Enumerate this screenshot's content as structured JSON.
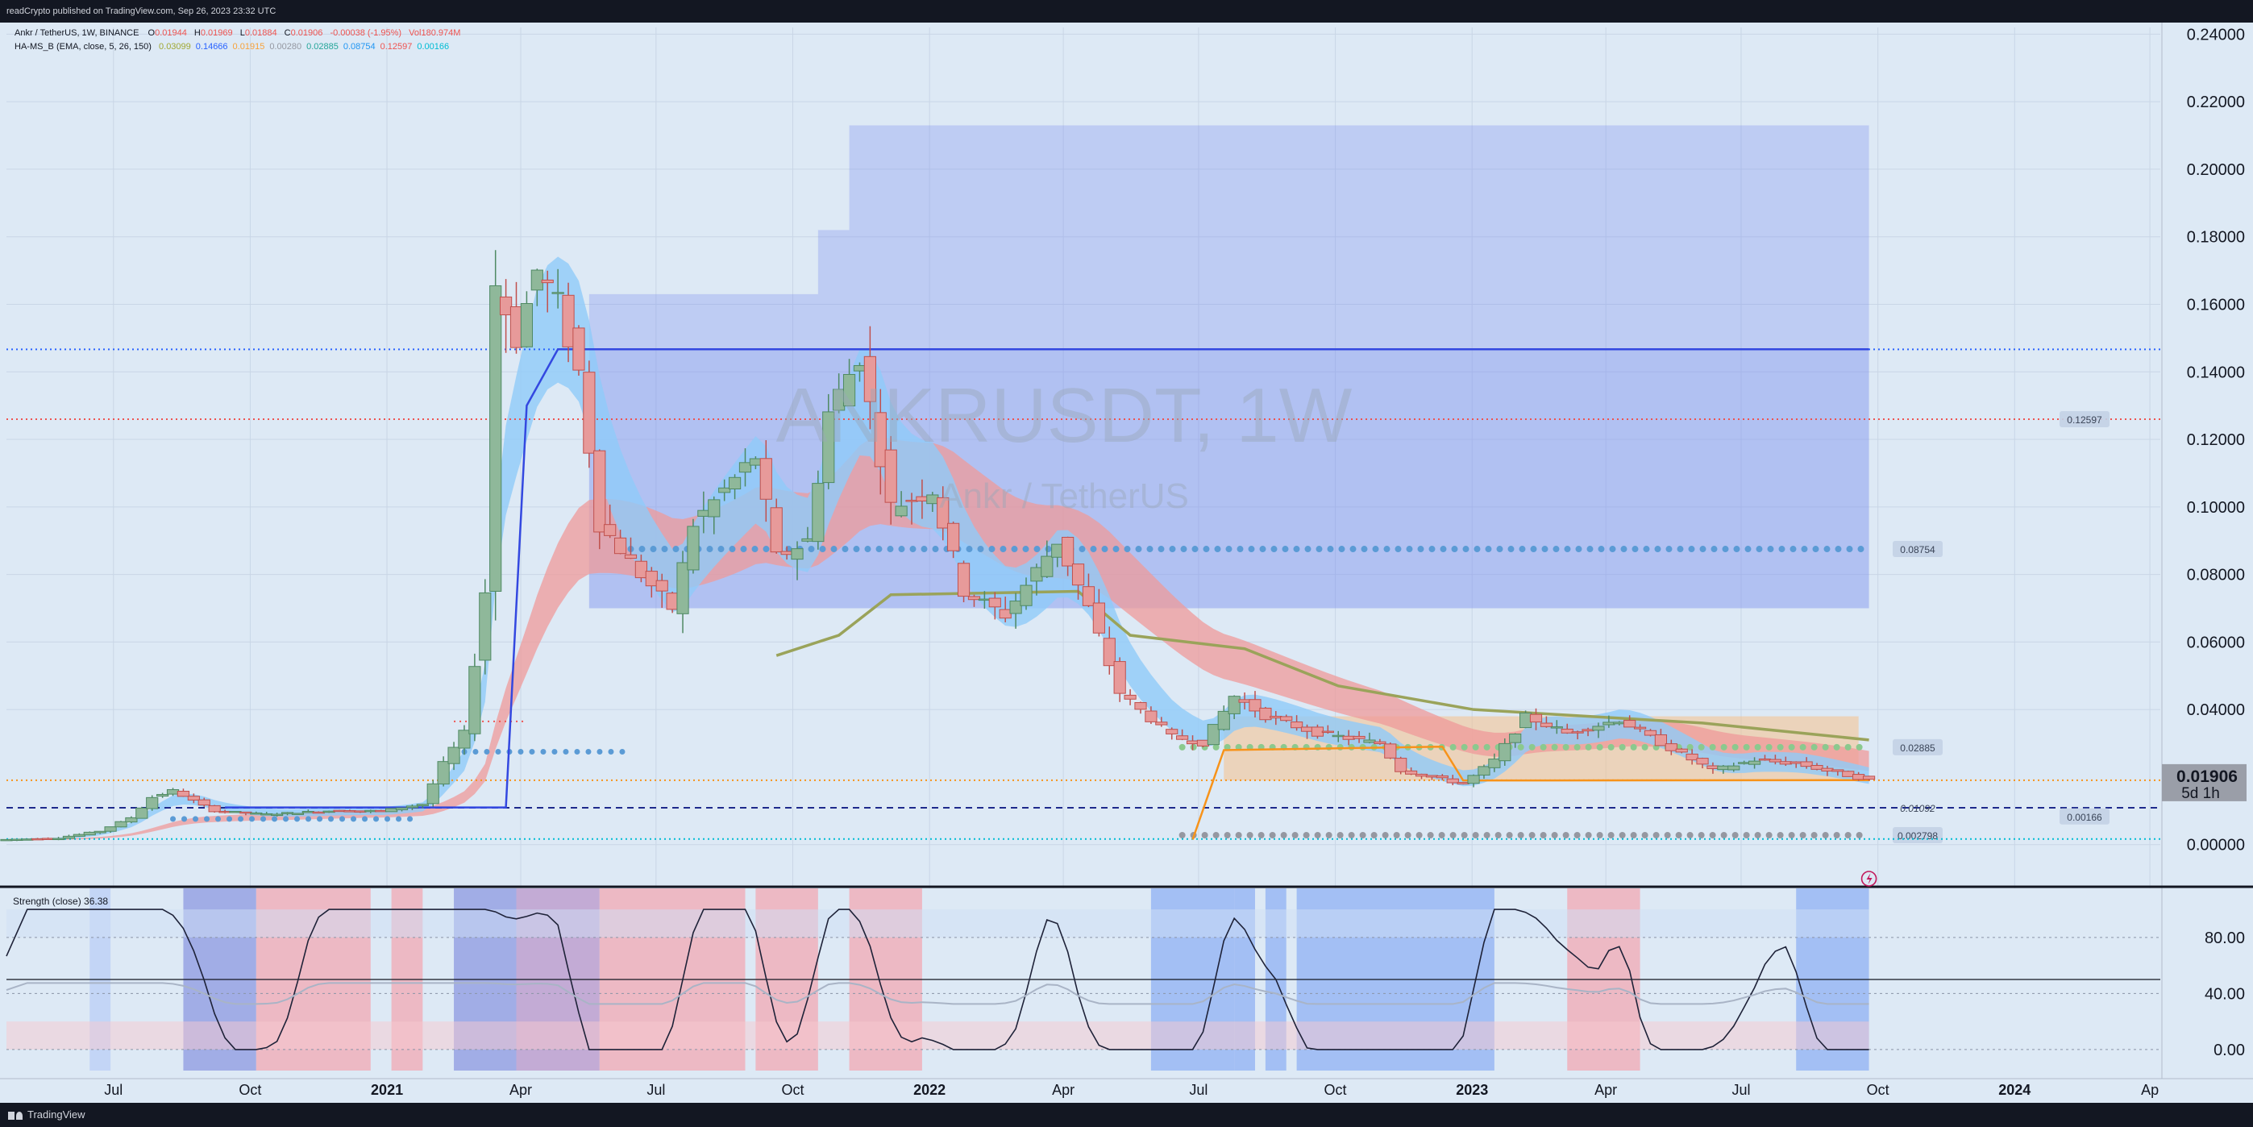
{
  "header": {
    "published": "readCrypto published on TradingView.com, Sep 26, 2023 23:32 UTC"
  },
  "footer": {
    "brand": "TradingView"
  },
  "legend": {
    "symbol_line": "Ankr / TetherUS, 1W, BINANCE",
    "ohlc": [
      {
        "label": "O",
        "value": "0.01944"
      },
      {
        "label": "H",
        "value": "0.01969"
      },
      {
        "label": "L",
        "value": "0.01884"
      },
      {
        "label": "C",
        "value": "0.01906"
      }
    ],
    "change": "-0.00038 (-1.95%)",
    "volume": "Vol180.974M",
    "indicator_name": "HA-MS_B (EMA, close, 5, 26, 150)",
    "indicator_values": [
      {
        "value": "0.03099",
        "color": "#a0a832"
      },
      {
        "value": "0.14666",
        "color": "#2962ff"
      },
      {
        "value": "0.01915",
        "color": "#f7a23a"
      },
      {
        "value": "0.00280",
        "color": "#9598a1"
      },
      {
        "value": "0.02885",
        "color": "#26a69a"
      },
      {
        "value": "0.08754",
        "color": "#2196f3"
      },
      {
        "value": "0.12597",
        "color": "#ef5350"
      },
      {
        "value": "0.00166",
        "color": "#00bcd4"
      }
    ]
  },
  "watermark": {
    "symbol": "ANKRUSDT, 1W",
    "name": "Ankr / TetherUS"
  },
  "oscillator": {
    "label": "Strength (close)",
    "value": "36.38"
  },
  "colors": {
    "background": "#dde9f5",
    "up": "#26a69a",
    "down": "#ef5350",
    "blue_box": "#7b8ff0",
    "ema_fast": "#90caf9",
    "ema_slow": "#ef9a9a",
    "olive_line": "#9aa35a",
    "orange_line": "#f7931a",
    "dark_blue_line": "#3348e0"
  },
  "chart_data": {
    "type": "candlestick",
    "symbol": "ANKRUSDT",
    "timeframe": "1W",
    "exchange": "BINANCE",
    "y_range": [
      -0.012,
      0.242
    ],
    "y_ticks": [
      "0.24000",
      "0.22000",
      "0.20000",
      "0.18000",
      "0.16000",
      "0.14000",
      "0.12000",
      "0.10000",
      "0.08000",
      "0.06000",
      "0.04000",
      "0.00000"
    ],
    "x_range": [
      "2020-04-20",
      "2024-04-08"
    ],
    "x_ticks": [
      {
        "date": "2020-07-01",
        "label": "Jul"
      },
      {
        "date": "2020-10-01",
        "label": "Oct"
      },
      {
        "date": "2021-01-01",
        "label": "2021"
      },
      {
        "date": "2021-04-01",
        "label": "Apr"
      },
      {
        "date": "2021-07-01",
        "label": "Jul"
      },
      {
        "date": "2021-10-01",
        "label": "Oct"
      },
      {
        "date": "2022-01-01",
        "label": "2022"
      },
      {
        "date": "2022-04-01",
        "label": "Apr"
      },
      {
        "date": "2022-07-01",
        "label": "Jul"
      },
      {
        "date": "2022-10-01",
        "label": "Oct"
      },
      {
        "date": "2023-01-01",
        "label": "2023"
      },
      {
        "date": "2023-04-01",
        "label": "Apr"
      },
      {
        "date": "2023-07-01",
        "label": "Jul"
      },
      {
        "date": "2023-10-01",
        "label": "Oct"
      },
      {
        "date": "2024-01-01",
        "label": "2024"
      },
      {
        "date": "2024-04-01",
        "label": "Ap"
      }
    ],
    "price_levels": [
      {
        "label": "0.14666",
        "value": 0.14666,
        "style": "dotted",
        "color": "#2962ff",
        "tag": ""
      },
      {
        "label": "0.12597",
        "value": 0.12597,
        "style": "dotted",
        "color": "#ef5350",
        "tag": "0.12597"
      },
      {
        "label": "0.08754",
        "value": 0.08754,
        "style": "dots",
        "color": "#5b9bd5",
        "tag": "0.08754"
      },
      {
        "label": "0.02885",
        "value": 0.02885,
        "style": "dots",
        "color": "#8bc98e",
        "tag": "0.02885"
      },
      {
        "label": "0.01906",
        "value": 0.01906,
        "style": "dotted",
        "color": "#f7931a",
        "tag": ""
      },
      {
        "label": "0.01092",
        "value": 0.01092,
        "style": "dashed",
        "color": "#1e2a8c",
        "tag": "0.01092"
      },
      {
        "label": "0.002798",
        "value": 0.002798,
        "style": "dots",
        "color": "#9598a1",
        "tag": "0.002798"
      },
      {
        "label": "0.00166",
        "value": 0.00166,
        "style": "dotted",
        "color": "#00bcd4",
        "tag": "0.00166"
      }
    ],
    "last_price": {
      "value": "0.01906",
      "countdown": "5d 1h"
    },
    "box": {
      "start": "2021-05-17",
      "end": "2023-09-25",
      "low": 0.07,
      "high": 0.147
    },
    "box_steps": [
      {
        "date": "2021-05-17",
        "value": 0.163
      },
      {
        "date": "2021-10-04",
        "value": 0.163
      },
      {
        "date": "2021-10-18",
        "value": 0.182
      },
      {
        "date": "2021-11-08",
        "value": 0.213
      },
      {
        "date": "2023-09-25",
        "value": 0.213
      }
    ],
    "candle_keyframes": [
      {
        "date": "2020-04-20",
        "price": 0.0015
      },
      {
        "date": "2020-05-25",
        "price": 0.002
      },
      {
        "date": "2020-06-22",
        "price": 0.004
      },
      {
        "date": "2020-07-13",
        "price": 0.008
      },
      {
        "date": "2020-07-27",
        "price": 0.014
      },
      {
        "date": "2020-08-10",
        "price": 0.016
      },
      {
        "date": "2020-09-07",
        "price": 0.01
      },
      {
        "date": "2020-10-12",
        "price": 0.009
      },
      {
        "date": "2020-11-23",
        "price": 0.01
      },
      {
        "date": "2020-12-28",
        "price": 0.01
      },
      {
        "date": "2021-01-25",
        "price": 0.012
      },
      {
        "date": "2021-02-08",
        "price": 0.024
      },
      {
        "date": "2021-02-22",
        "price": 0.033
      },
      {
        "date": "2021-03-08",
        "price": 0.075
      },
      {
        "date": "2021-03-15",
        "price": 0.166
      },
      {
        "date": "2021-03-29",
        "price": 0.15
      },
      {
        "date": "2021-04-12",
        "price": 0.17
      },
      {
        "date": "2021-04-26",
        "price": 0.16
      },
      {
        "date": "2021-05-10",
        "price": 0.14
      },
      {
        "date": "2021-05-24",
        "price": 0.095
      },
      {
        "date": "2021-06-21",
        "price": 0.08
      },
      {
        "date": "2021-07-12",
        "price": 0.07
      },
      {
        "date": "2021-07-26",
        "price": 0.095
      },
      {
        "date": "2021-08-16",
        "price": 0.105
      },
      {
        "date": "2021-09-06",
        "price": 0.115
      },
      {
        "date": "2021-09-20",
        "price": 0.085
      },
      {
        "date": "2021-10-11",
        "price": 0.09
      },
      {
        "date": "2021-10-25",
        "price": 0.128
      },
      {
        "date": "2021-11-15",
        "price": 0.145
      },
      {
        "date": "2021-12-06",
        "price": 0.1
      },
      {
        "date": "2022-01-03",
        "price": 0.105
      },
      {
        "date": "2022-01-24",
        "price": 0.075
      },
      {
        "date": "2022-02-21",
        "price": 0.068
      },
      {
        "date": "2022-03-28",
        "price": 0.09
      },
      {
        "date": "2022-04-18",
        "price": 0.07
      },
      {
        "date": "2022-05-09",
        "price": 0.045
      },
      {
        "date": "2022-06-13",
        "price": 0.032
      },
      {
        "date": "2022-07-04",
        "price": 0.03
      },
      {
        "date": "2022-07-25",
        "price": 0.044
      },
      {
        "date": "2022-08-15",
        "price": 0.038
      },
      {
        "date": "2022-09-19",
        "price": 0.033
      },
      {
        "date": "2022-10-31",
        "price": 0.03
      },
      {
        "date": "2022-11-14",
        "price": 0.022
      },
      {
        "date": "2022-12-26",
        "price": 0.018
      },
      {
        "date": "2023-01-16",
        "price": 0.025
      },
      {
        "date": "2023-02-06",
        "price": 0.038
      },
      {
        "date": "2023-03-06",
        "price": 0.033
      },
      {
        "date": "2023-04-10",
        "price": 0.037
      },
      {
        "date": "2023-05-08",
        "price": 0.03
      },
      {
        "date": "2023-06-12",
        "price": 0.022
      },
      {
        "date": "2023-07-10",
        "price": 0.025
      },
      {
        "date": "2023-08-07",
        "price": 0.024
      },
      {
        "date": "2023-09-25",
        "price": 0.0191
      }
    ],
    "olive_line": [
      {
        "date": "2021-09-20",
        "value": 0.056
      },
      {
        "date": "2021-11-01",
        "value": 0.062
      },
      {
        "date": "2021-12-06",
        "value": 0.074
      },
      {
        "date": "2022-04-11",
        "value": 0.075
      },
      {
        "date": "2022-05-16",
        "value": 0.062
      },
      {
        "date": "2022-08-01",
        "value": 0.058
      },
      {
        "date": "2022-10-03",
        "value": 0.047
      },
      {
        "date": "2023-01-02",
        "value": 0.04
      },
      {
        "date": "2023-06-05",
        "value": 0.036
      },
      {
        "date": "2023-09-25",
        "value": 0.031
      }
    ],
    "orange_line": [
      {
        "date": "2022-06-27",
        "value": 0.0015
      },
      {
        "date": "2022-07-18",
        "value": 0.028
      },
      {
        "date": "2022-12-12",
        "value": 0.029
      },
      {
        "date": "2022-12-26",
        "value": 0.019
      },
      {
        "date": "2023-09-25",
        "value": 0.0191
      }
    ],
    "dark_blue_line": [
      {
        "date": "2020-09-14",
        "value": 0.011
      },
      {
        "date": "2021-03-22",
        "value": 0.011
      },
      {
        "date": "2021-04-05",
        "value": 0.13
      },
      {
        "date": "2021-04-26",
        "value": 0.1467
      },
      {
        "date": "2023-09-25",
        "value": 0.1467
      }
    ],
    "oscillator": {
      "name": "Strength (close)",
      "last": 36.38,
      "y_range": [
        -15,
        115
      ],
      "y_ticks": [
        "80.00",
        "40.00",
        "0.00"
      ]
    }
  }
}
